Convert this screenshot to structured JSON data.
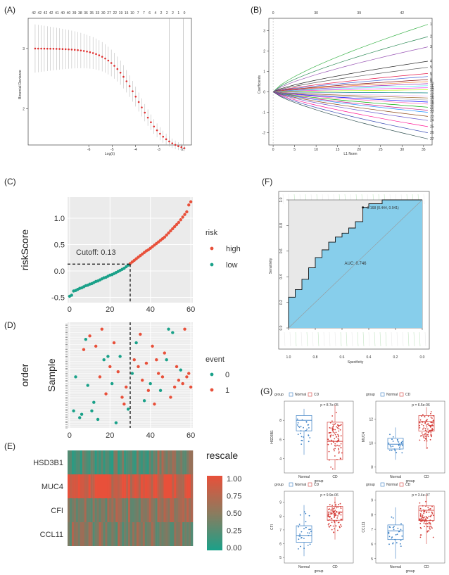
{
  "panels": {
    "A": {
      "label": "(A)",
      "chart_data": {
        "type": "line",
        "xlabel": "Log(λ)",
        "ylabel": "Binomial Deviance",
        "xlim": [
          -8.6,
          -1.6
        ],
        "ylim": [
          1.4,
          3.5
        ],
        "xticks": [
          -6,
          -5,
          -4,
          -3,
          -2
        ],
        "yticks": [
          2,
          3
        ],
        "top_ticks": [
          "42",
          "42",
          "42",
          "42",
          "41",
          "40",
          "40",
          "39",
          "38",
          "36",
          "35",
          "33",
          "30",
          "27",
          "22",
          "19",
          "15",
          "10",
          "7",
          "7",
          "6",
          "4",
          "2",
          "2",
          "2",
          "1",
          "0"
        ],
        "vlines": [
          -2.55,
          -1.95
        ],
        "series": [
          {
            "name": "deviance",
            "start": 3.0,
            "end": 1.28,
            "points": 50
          }
        ]
      }
    },
    "B": {
      "label": "(B)",
      "chart_data": {
        "type": "line",
        "xlabel": "L1 Norm",
        "ylabel": "Coefficients",
        "xlim": [
          -1,
          37
        ],
        "ylim": [
          -2.6,
          3.6
        ],
        "xticks": [
          0,
          5,
          10,
          15,
          20,
          25,
          30,
          35
        ],
        "yticks": [
          -2,
          -1,
          0,
          1,
          2,
          3
        ],
        "top_ticks": [
          "0",
          "30",
          "39",
          "42"
        ],
        "top_tick_positions": [
          0,
          10,
          20,
          30
        ],
        "endpoints": [
          3.3,
          2.7,
          2.2,
          1.5,
          1.2,
          0.9,
          0.75,
          0.6,
          0.5,
          0.4,
          0.3,
          0.2,
          0.1,
          -0.05,
          -0.2,
          -0.3,
          -0.4,
          -0.5,
          -0.6,
          -0.75,
          -0.9,
          -1.0,
          -1.2,
          -1.4,
          -1.7,
          -2.0,
          -2.3
        ],
        "colors": [
          "#3cb44b",
          "#2e8b57",
          "#9b59b6",
          "#222222",
          "#555555",
          "#e6194b",
          "#4363d8",
          "#800000",
          "#f58231",
          "#911eb4",
          "#46f0f0",
          "#f032e6",
          "#bcf60c",
          "#008080",
          "#e6beff",
          "#9a6324",
          "#aaaaaa",
          "#0000ff",
          "#ff69b4",
          "#00aa00",
          "#c71585",
          "#1e90ff",
          "#8b4513",
          "#6a5acd",
          "#ff1493",
          "#3f51b5",
          "#2f4f4f"
        ]
      }
    },
    "C": {
      "label": "(C)",
      "chart_data": {
        "type": "scatter",
        "ylabel": "riskScore",
        "xticks": [
          0,
          20,
          40,
          60
        ],
        "yticks": [
          -0.5,
          0.0,
          0.5,
          1.0
        ],
        "xlim": [
          -1,
          61
        ],
        "ylim": [
          -0.6,
          1.4
        ],
        "cutoff_x": 30,
        "cutoff_y": 0.13,
        "annotation": "Cutoff: 0.13",
        "legend_title": "risk",
        "legend": [
          "high",
          "low"
        ],
        "colors": {
          "high": "#e8503a",
          "low": "#1aa189"
        },
        "values": [
          -0.48,
          -0.46,
          -0.38,
          -0.37,
          -0.35,
          -0.33,
          -0.32,
          -0.3,
          -0.28,
          -0.27,
          -0.25,
          -0.24,
          -0.22,
          -0.2,
          -0.19,
          -0.17,
          -0.15,
          -0.13,
          -0.12,
          -0.1,
          -0.08,
          -0.07,
          -0.05,
          -0.03,
          -0.01,
          0.01,
          0.03,
          0.05,
          0.08,
          0.11,
          0.14,
          0.17,
          0.2,
          0.23,
          0.26,
          0.29,
          0.32,
          0.35,
          0.38,
          0.4,
          0.43,
          0.46,
          0.49,
          0.52,
          0.55,
          0.58,
          0.61,
          0.64,
          0.68,
          0.72,
          0.76,
          0.8,
          0.84,
          0.88,
          0.92,
          0.97,
          1.02,
          1.07,
          1.12,
          1.25,
          1.31
        ]
      }
    },
    "D": {
      "label": "(D)",
      "chart_data": {
        "type": "scatter",
        "ylabel_outer": "order",
        "ylabel": "Sample",
        "xticks": [
          0,
          20,
          40,
          60
        ],
        "xlim": [
          -1,
          61
        ],
        "ylim": [
          0,
          62
        ],
        "cutoff_x": 30,
        "legend_title": "event",
        "legend": [
          "0",
          "1"
        ],
        "colors": {
          "0": "#1aa189",
          "1": "#e8503a"
        },
        "x": [
          2,
          3,
          5,
          6,
          7,
          8,
          9,
          10,
          11,
          12,
          13,
          14,
          15,
          16,
          17,
          18,
          19,
          20,
          21,
          22,
          23,
          24,
          25,
          26,
          27,
          28,
          29,
          31,
          32,
          33,
          34,
          35,
          36,
          37,
          38,
          39,
          40,
          41,
          42,
          43,
          44,
          45,
          46,
          47,
          48,
          49,
          50,
          51,
          52,
          53,
          54,
          55,
          56,
          57,
          58,
          59,
          60
        ],
        "y": [
          10,
          30,
          6,
          8,
          46,
          52,
          25,
          54,
          10,
          15,
          48,
          5,
          30,
          58,
          40,
          20,
          42,
          36,
          26,
          50,
          3,
          33,
          42,
          18,
          14,
          24,
          11,
          32,
          40,
          50,
          36,
          55,
          28,
          16,
          38,
          22,
          26,
          48,
          14,
          40,
          32,
          22,
          30,
          44,
          40,
          58,
          18,
          56,
          24,
          36,
          28,
          34,
          26,
          58,
          30,
          32,
          24
        ],
        "event": [
          0,
          0,
          0,
          0,
          1,
          0,
          0,
          1,
          0,
          0,
          1,
          0,
          1,
          1,
          0,
          1,
          0,
          1,
          0,
          1,
          0,
          1,
          0,
          1,
          1,
          1,
          0,
          0,
          1,
          0,
          1,
          1,
          1,
          0,
          1,
          1,
          0,
          1,
          1,
          1,
          1,
          0,
          1,
          1,
          0,
          0,
          1,
          0,
          1,
          1,
          1,
          0,
          1,
          1,
          1,
          1,
          1
        ]
      }
    },
    "E": {
      "label": "(E)",
      "chart_data": {
        "type": "heatmap",
        "rows": [
          "HSD3B1",
          "MUC4",
          "CFI",
          "CCL11"
        ],
        "row_base_values": [
          0.28,
          0.92,
          0.55,
          0.5
        ],
        "columns": 60,
        "legend_title": "rescale",
        "legend_ticks": [
          "1.00",
          "0.75",
          "0.50",
          "0.25",
          "0.00"
        ],
        "color_low": "#1aa189",
        "color_high": "#e8503a"
      }
    },
    "F": {
      "label": "(F)",
      "chart_data": {
        "type": "line",
        "xlabel": "Specificity",
        "ylabel": "Sensitivity",
        "xticks": [
          "1.0",
          "0.8",
          "0.6",
          "0.4",
          "0.2",
          "0.0"
        ],
        "yticks": [
          "0.0",
          "0.2",
          "0.4",
          "0.6",
          "0.8",
          "1.0"
        ],
        "auc_label": "AUC: 0.746",
        "threshold_label": "-0.168 (0.444, 0.941)",
        "roc_x": [
          0.0,
          0.0,
          0.05,
          0.05,
          0.1,
          0.1,
          0.15,
          0.15,
          0.2,
          0.2,
          0.25,
          0.25,
          0.3,
          0.3,
          0.35,
          0.35,
          0.4,
          0.4,
          0.45,
          0.45,
          0.5,
          0.5,
          0.556,
          0.556,
          0.6,
          0.6,
          0.7,
          0.7,
          1.0
        ],
        "roc_y": [
          0.0,
          0.24,
          0.24,
          0.3,
          0.3,
          0.38,
          0.38,
          0.47,
          0.47,
          0.55,
          0.55,
          0.61,
          0.61,
          0.67,
          0.67,
          0.71,
          0.71,
          0.74,
          0.74,
          0.78,
          0.78,
          0.83,
          0.83,
          0.941,
          0.941,
          0.97,
          0.97,
          1.0,
          1.0
        ],
        "fill": "#87ceeb"
      }
    },
    "G": {
      "label": "(G)",
      "legend_title": "group",
      "legend_items": [
        "Normal",
        "CD"
      ],
      "xtitle": "group",
      "categories": [
        "Normal",
        "CD"
      ],
      "colors": {
        "Normal": "#3a7fc4",
        "CD": "#d43f3a"
      },
      "subplots": [
        {
          "chart_data": {
            "type": "box",
            "ylabel": "HSD3B1",
            "pvalue": "p = 8.7e-05",
            "ylim": [
              2.5,
              10
            ],
            "yticks": [
              4,
              6,
              8
            ],
            "Normal": {
              "q1": 6.9,
              "median": 8.0,
              "q3": 8.5,
              "lo": 4.4,
              "hi": 9.2
            },
            "CD": {
              "q1": 3.9,
              "median": 5.8,
              "q3": 7.8,
              "lo": 2.8,
              "hi": 9.6
            }
          }
        },
        {
          "chart_data": {
            "type": "box",
            "ylabel": "MUC4",
            "pvalue": "p = 6.5e-06",
            "ylim": [
              7.5,
              13.5
            ],
            "yticks": [
              8,
              10,
              12
            ],
            "Normal": {
              "q1": 9.5,
              "median": 9.9,
              "q3": 10.4,
              "lo": 8.6,
              "hi": 11.3
            },
            "CD": {
              "q1": 11.0,
              "median": 11.8,
              "q3": 12.3,
              "lo": 9.5,
              "hi": 13.0
            }
          }
        },
        {
          "chart_data": {
            "type": "box",
            "ylabel": "CFI",
            "pvalue": "p = 9.9e-06",
            "ylim": [
              4.6,
              9.8
            ],
            "yticks": [
              5,
              6,
              7,
              8,
              9
            ],
            "Normal": {
              "q1": 6.1,
              "median": 6.6,
              "q3": 7.3,
              "lo": 5.1,
              "hi": 8.8
            },
            "CD": {
              "q1": 7.7,
              "median": 8.3,
              "q3": 8.7,
              "lo": 6.3,
              "hi": 9.4
            }
          }
        },
        {
          "chart_data": {
            "type": "box",
            "ylabel": "CCL11",
            "pvalue": "p = 3.4e-07",
            "ylim": [
              4.7,
              9.6
            ],
            "yticks": [
              5,
              6,
              7,
              8,
              9
            ],
            "Normal": {
              "q1": 6.3,
              "median": 6.9,
              "q3": 7.3,
              "lo": 5.0,
              "hi": 8.5
            },
            "CD": {
              "q1": 7.6,
              "median": 8.3,
              "q3": 8.6,
              "lo": 6.0,
              "hi": 9.4
            }
          }
        }
      ]
    }
  }
}
